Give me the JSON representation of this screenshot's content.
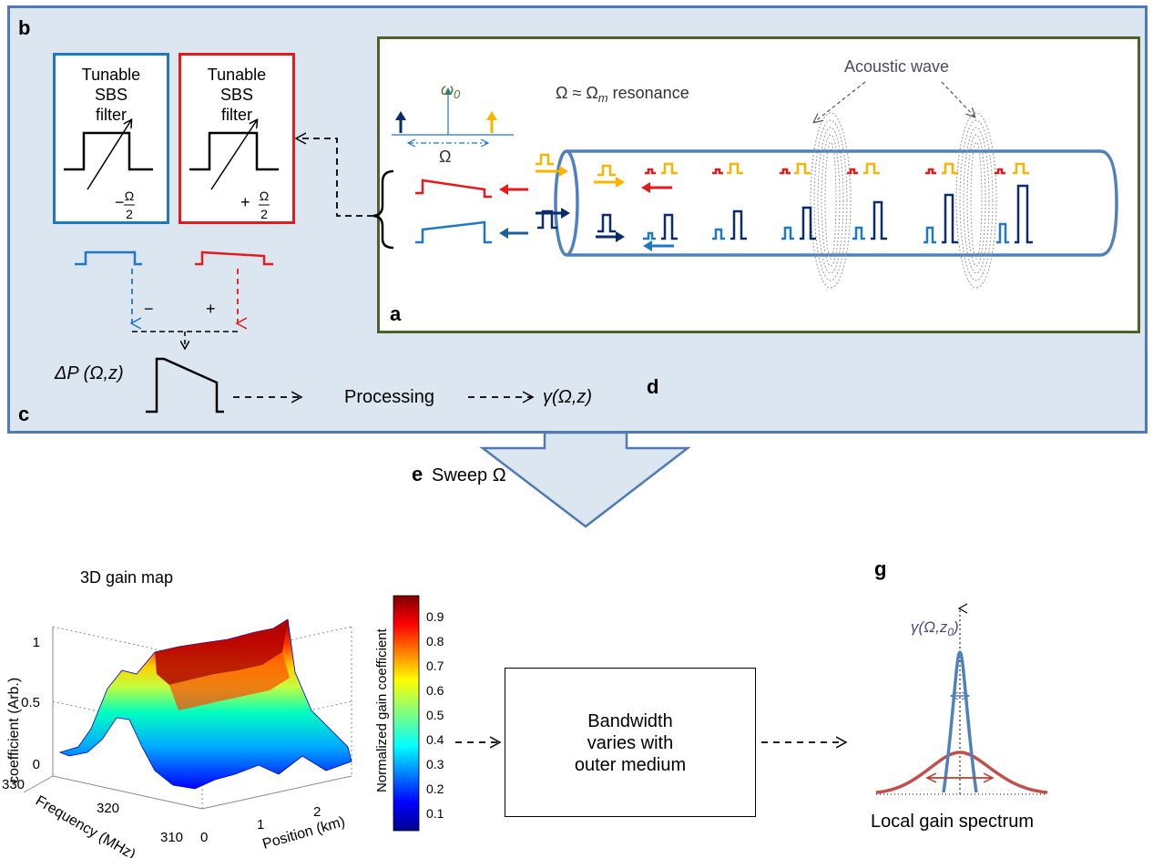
{
  "panels": {
    "a": "a",
    "b": "b",
    "c": "c",
    "d": "d",
    "e": "e",
    "g": "g"
  },
  "filters": {
    "left": {
      "title_lines": [
        "Tunable",
        "SBS",
        "filter"
      ],
      "sign": "−",
      "frac_num": "Ω",
      "frac_den": "2"
    },
    "right": {
      "title_lines": [
        "Tunable",
        "SBS",
        "filter"
      ],
      "sign": "+",
      "frac_num": "Ω",
      "frac_den": "2"
    }
  },
  "signs": {
    "minus": "−",
    "plus": "+"
  },
  "fiber": {
    "acoustic_wave": "Acoustic wave",
    "resonance_lhs": "Ω ≈ Ω",
    "resonance_sub": "m",
    "resonance_rhs": " resonance",
    "omega0": "ω",
    "omega0_sub": "0",
    "omega": "Ω"
  },
  "flow": {
    "deltaP": "ΔP (Ω,z)",
    "processing": "Processing",
    "gamma": "γ(Ω,z)",
    "sweep": "Sweep Ω"
  },
  "gainmap": {
    "title": "3D gain map",
    "zlabel": "coefficient (Arb.)",
    "zticks": [
      "1",
      "0.5",
      "0"
    ],
    "freq_label": "Frequency (MHz)",
    "freq_ticks": [
      "330",
      "320",
      "310"
    ],
    "pos_label": "Position (km)",
    "pos_ticks": [
      "0",
      "1",
      "2"
    ],
    "colorbar_label": "Normalized gain coefficient",
    "colorbar_ticks": [
      "0.9",
      "0.8",
      "0.7",
      "0.6",
      "0.5",
      "0.4",
      "0.3",
      "0.2",
      "0.1"
    ]
  },
  "bandwidth_box": {
    "lines": [
      "Bandwidth",
      "varies with",
      "outer medium"
    ]
  },
  "spectrum": {
    "gamma_label": "γ(Ω,z",
    "gamma_sub": "0",
    "gamma_close": ")",
    "caption": "Local gain spectrum"
  },
  "colors": {
    "blue": "#1f78c4",
    "red": "#e41a1c",
    "navy": "#0b2c6b",
    "yellow": "#f7b500",
    "panel_border": "#4f7ab4",
    "green_border": "#4e6228",
    "spec_blue": "#4f81bd",
    "spec_red": "#c0504d"
  }
}
